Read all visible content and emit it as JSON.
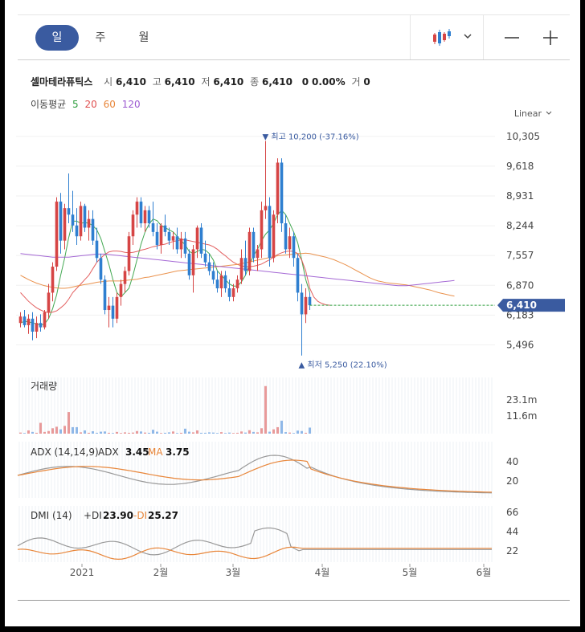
{
  "periods": [
    "일",
    "주",
    "월"
  ],
  "active_period": 0,
  "icons": {
    "chart_type": "candlestick-chart-icon",
    "dropdown": "chevron-down-icon",
    "zoom_out": "minus-icon",
    "zoom_in": "plus-icon"
  },
  "stock": {
    "name": "셀마테라퓨틱스",
    "open_label": "시",
    "open": "6,410",
    "high_label": "고",
    "high": "6,410",
    "low_label": "저",
    "low": "6,410",
    "close_label": "종",
    "close": "6,410",
    "change": "0",
    "change_pct": "0.00%",
    "volume_label": "거",
    "volume": "0"
  },
  "moving_average": {
    "label": "이동평균",
    "periods": [
      {
        "value": "5",
        "color": "#2e9e3e"
      },
      {
        "value": "20",
        "color": "#e04e4e"
      },
      {
        "value": "60",
        "color": "#e8863a"
      },
      {
        "value": "120",
        "color": "#9b59d0"
      }
    ]
  },
  "colors": {
    "up": "#d64545",
    "down": "#2f7fd0",
    "accent": "#3a5ba0",
    "current_line": "#2e9e3e"
  },
  "chart_data": {
    "type": "candlestick",
    "scale": "Linear",
    "price_ticks": [
      "10,305",
      "9,618",
      "8,931",
      "8,244",
      "7,557",
      "6,870",
      "6,183",
      "5,496"
    ],
    "ylim": [
      5300,
      10450
    ],
    "current_price": 6410,
    "current_label": "6,410",
    "max_annotation": "최고 10,200 (-37.16%)",
    "min_annotation": "최저 5,250 (22.10%)",
    "x_labels": [
      "2021",
      "2월",
      "3월",
      "4월",
      "5월",
      "6월"
    ],
    "candles": [
      [
        6000,
        6250,
        5900,
        6150
      ],
      [
        6150,
        6300,
        5900,
        5950
      ],
      [
        5950,
        6200,
        5750,
        6100
      ],
      [
        6100,
        6250,
        5600,
        5800
      ],
      [
        5800,
        6150,
        5650,
        6000
      ],
      [
        6000,
        6200,
        5800,
        5900
      ],
      [
        5900,
        6300,
        5850,
        6250
      ],
      [
        6250,
        6900,
        6100,
        6700
      ],
      [
        6700,
        7400,
        6500,
        7300
      ],
      [
        7300,
        8900,
        7200,
        8800
      ],
      [
        8800,
        9000,
        7600,
        7900
      ],
      [
        7900,
        8750,
        7700,
        8650
      ],
      [
        8650,
        9450,
        8300,
        8500
      ],
      [
        8500,
        9050,
        8100,
        8250
      ],
      [
        8250,
        8650,
        7800,
        8000
      ],
      [
        8000,
        8800,
        7900,
        8700
      ],
      [
        8700,
        8750,
        8100,
        8200
      ],
      [
        8200,
        8600,
        7900,
        8400
      ],
      [
        8400,
        8600,
        7800,
        7900
      ],
      [
        7900,
        8200,
        7400,
        7500
      ],
      [
        7500,
        7600,
        6900,
        7000
      ],
      [
        7000,
        7100,
        6200,
        6300
      ],
      [
        6300,
        6600,
        5900,
        6400
      ],
      [
        6400,
        6600,
        5900,
        6100
      ],
      [
        6100,
        6700,
        6000,
        6600
      ],
      [
        6600,
        7000,
        6400,
        6900
      ],
      [
        6900,
        7300,
        6700,
        7200
      ],
      [
        7200,
        8100,
        7100,
        8000
      ],
      [
        8000,
        8600,
        7800,
        8500
      ],
      [
        8500,
        8900,
        8200,
        8800
      ],
      [
        8800,
        8900,
        8200,
        8300
      ],
      [
        8300,
        8700,
        8100,
        8600
      ],
      [
        8600,
        8700,
        8200,
        8300
      ],
      [
        8300,
        8800,
        8000,
        8100
      ],
      [
        8100,
        8300,
        7700,
        7800
      ],
      [
        7800,
        8300,
        7600,
        8250
      ],
      [
        8250,
        8500,
        8000,
        8100
      ],
      [
        8100,
        8200,
        7800,
        7900
      ],
      [
        7900,
        8100,
        7700,
        8000
      ],
      [
        8000,
        8200,
        7600,
        7700
      ],
      [
        7700,
        8100,
        7500,
        7950
      ],
      [
        7950,
        8100,
        7500,
        7600
      ],
      [
        7600,
        7700,
        7000,
        7100
      ],
      [
        7100,
        7800,
        6700,
        7700
      ],
      [
        7700,
        8250,
        7500,
        8200
      ],
      [
        8200,
        8300,
        7500,
        7600
      ],
      [
        7600,
        7900,
        7300,
        7400
      ],
      [
        7400,
        7600,
        7100,
        7200
      ],
      [
        7200,
        7400,
        6900,
        7000
      ],
      [
        7000,
        7200,
        6700,
        6800
      ],
      [
        6800,
        7200,
        6600,
        7100
      ],
      [
        7100,
        7200,
        6700,
        6800
      ],
      [
        6800,
        7000,
        6500,
        6600
      ],
      [
        6600,
        6900,
        6500,
        6800
      ],
      [
        6800,
        7100,
        6700,
        7000
      ],
      [
        7000,
        7700,
        6900,
        7500
      ],
      [
        7500,
        7900,
        7100,
        7200
      ],
      [
        7200,
        8200,
        7100,
        8100
      ],
      [
        8100,
        8200,
        7400,
        7500
      ],
      [
        7500,
        7800,
        7200,
        7700
      ],
      [
        7700,
        8800,
        7500,
        8600
      ],
      [
        8600,
        10200,
        8400,
        8700
      ],
      [
        8700,
        8900,
        7300,
        7500
      ],
      [
        7500,
        8600,
        7400,
        8500
      ],
      [
        8500,
        9800,
        8300,
        9700
      ],
      [
        9700,
        9800,
        8100,
        8300
      ],
      [
        8300,
        8500,
        7600,
        7700
      ],
      [
        7700,
        8200,
        7500,
        8000
      ],
      [
        8000,
        8100,
        7300,
        7500
      ],
      [
        7500,
        7600,
        6500,
        6700
      ],
      [
        6700,
        6900,
        5250,
        6200
      ],
      [
        6200,
        6800,
        6000,
        6600
      ],
      [
        6600,
        6700,
        6300,
        6410
      ]
    ],
    "ma_series": {
      "ma5": [
        6000,
        6040,
        6030,
        6000,
        5980,
        5950,
        5980,
        6100,
        6330,
        6650,
        7100,
        7500,
        7970,
        8350,
        8350,
        8300,
        8320,
        8300,
        8250,
        8150,
        7950,
        7650,
        7350,
        7000,
        6700,
        6600,
        6700,
        6800,
        7100,
        7460,
        7820,
        8100,
        8280,
        8400,
        8360,
        8250,
        8200,
        8150,
        8100,
        8000,
        7900,
        7800,
        7650,
        7600,
        7650,
        7700,
        7680,
        7600,
        7450,
        7200,
        7100,
        7000,
        6900,
        6850,
        6850,
        6950,
        7100,
        7350,
        7550,
        7700,
        7900,
        8050,
        8150,
        8300,
        8500,
        8600,
        8500,
        8300,
        8100,
        7850,
        7450,
        7000,
        6700
      ],
      "ma20": [
        6700,
        6600,
        6500,
        6420,
        6350,
        6300,
        6260,
        6240,
        6250,
        6280,
        6350,
        6430,
        6550,
        6700,
        6800,
        6900,
        7000,
        7100,
        7250,
        7400,
        7500,
        7580,
        7640,
        7660,
        7660,
        7650,
        7630,
        7620,
        7630,
        7650,
        7680,
        7700,
        7730,
        7760,
        7780,
        7800,
        7820,
        7850,
        7880,
        7900,
        7920,
        7920,
        7900,
        7880,
        7860,
        7840,
        7820,
        7800,
        7760,
        7700,
        7620,
        7550,
        7470,
        7400,
        7350,
        7320,
        7300,
        7300,
        7310,
        7330,
        7360,
        7410,
        7460,
        7520,
        7580,
        7620,
        7650,
        7660,
        7650,
        7600,
        7450,
        7200,
        6800
      ],
      "ma60": [
        7100,
        7050,
        7000,
        6960,
        6920,
        6890,
        6860,
        6840,
        6820,
        6810,
        6800,
        6800,
        6810,
        6830,
        6850,
        6870,
        6890,
        6900,
        6920,
        6940,
        6950,
        6960,
        6970,
        6970,
        6970,
        6970,
        6980,
        6990,
        7000,
        7010,
        7030,
        7050,
        7060,
        7080,
        7100,
        7120,
        7140,
        7160,
        7180,
        7200,
        7210,
        7220,
        7230,
        7240,
        7250,
        7260,
        7270,
        7280,
        7290,
        7300,
        7310,
        7320,
        7330,
        7340,
        7350,
        7370,
        7390,
        7410,
        7430,
        7450,
        7470,
        7490,
        7510,
        7530,
        7550,
        7560,
        7570,
        7580,
        7590,
        7600,
        7600,
        7610,
        7600
      ],
      "ma120": [
        7600,
        7590,
        7580,
        7570,
        7560,
        7550,
        7540,
        7530,
        7520,
        7520,
        7520,
        7520,
        7520,
        7530,
        7540,
        7550,
        7560,
        7570,
        7580,
        7590,
        7590,
        7590,
        7580,
        7570,
        7560,
        7550,
        7540,
        7530,
        7520,
        7510,
        7500,
        7490,
        7480,
        7470,
        7460,
        7450,
        7440,
        7430,
        7420,
        7410,
        7400,
        7390,
        7380,
        7370,
        7360,
        7350,
        7340,
        7330,
        7320,
        7310,
        7300,
        7290,
        7280,
        7270,
        7260,
        7250,
        7240,
        7230,
        7220,
        7210,
        7200,
        7190,
        7180,
        7170,
        7160,
        7150,
        7140,
        7130,
        7120,
        7110,
        7100,
        7090,
        7080
      ]
    },
    "ma_forward": {
      "ma20": [
        6600,
        6500,
        6450,
        6420,
        6410
      ],
      "ma60": [
        7580,
        7560,
        7540,
        7520,
        7490,
        7460,
        7420,
        7380,
        7340,
        7290,
        7240,
        7190,
        7140,
        7090,
        7040,
        7000,
        6970,
        6950,
        6930,
        6920,
        6910,
        6900,
        6890,
        6880,
        6860,
        6840,
        6820,
        6800,
        6780,
        6760,
        6730,
        6700,
        6680,
        6660,
        6640,
        6620
      ],
      "ma120": [
        7070,
        7060,
        7050,
        7040,
        7030,
        7020,
        7010,
        7000,
        6990,
        6980,
        6970,
        6960,
        6950,
        6940,
        6930,
        6920,
        6910,
        6900,
        6890,
        6880,
        6870,
        6860,
        6860,
        6860,
        6870,
        6880,
        6890,
        6900,
        6910,
        6920,
        6930,
        6940,
        6950,
        6960,
        6970,
        6980
      ]
    },
    "volume": {
      "label": "거래량",
      "ticks": [
        "23.1m",
        "11.6m"
      ],
      "ymax": 26,
      "values": [
        0.5,
        0.3,
        1.5,
        0.8,
        0.4,
        5,
        0.8,
        1.2,
        2.5,
        3.2,
        2,
        3.6,
        10,
        3,
        3,
        0.6,
        1.5,
        0.4,
        1.1,
        0.4,
        0.9,
        1,
        0.4,
        0.3,
        0.8,
        0.3,
        0.6,
        0.4,
        0.5,
        1.2,
        1,
        0.5,
        0.4,
        1.8,
        0.9,
        0.3,
        0.4,
        0.6,
        1,
        0.3,
        0.4,
        2.3,
        0.9,
        0.6,
        1.5,
        0.4,
        0.4,
        0.6,
        0.5,
        0.3,
        0.7,
        0.3,
        0.5,
        0.3,
        0.4,
        1,
        0.5,
        1.6,
        0.8,
        0.6,
        2.5,
        22,
        0.9,
        2,
        3,
        6,
        0.7,
        0.5,
        0.3,
        1.4,
        1.2,
        0.4,
        2.8
      ],
      "up": [
        1,
        0,
        1,
        0,
        1,
        1,
        1,
        1,
        1,
        1,
        0,
        1,
        1,
        0,
        0,
        1,
        0,
        1,
        0,
        0,
        0,
        0,
        1,
        0,
        1,
        1,
        1,
        1,
        1,
        1,
        0,
        1,
        0,
        0,
        0,
        1,
        0,
        0,
        1,
        0,
        1,
        0,
        0,
        1,
        1,
        0,
        0,
        0,
        0,
        0,
        1,
        0,
        0,
        1,
        1,
        1,
        0,
        1,
        0,
        1,
        1,
        1,
        0,
        1,
        1,
        0,
        0,
        1,
        0,
        0,
        0,
        1,
        0
      ]
    },
    "adx": {
      "label": "ADX (14,14,9)",
      "adx_label": "ADX",
      "adx_value": "3.45",
      "ma_label": "MA",
      "ma_value": "3.75",
      "ticks": [
        "40",
        "20"
      ],
      "ylim": [
        0,
        50
      ],
      "adx_color": "#999999",
      "ma_color": "#e8863a"
    },
    "dmi": {
      "label": "DMI (14)",
      "pdi_label": "+DI",
      "pdi_value": "23.90",
      "mdi_label": "-DI",
      "mdi_value": "25.27",
      "ticks": [
        "66",
        "44",
        "22"
      ],
      "ylim": [
        10,
        72
      ],
      "pdi_color": "#999999",
      "mdi_color": "#e8863a"
    }
  }
}
